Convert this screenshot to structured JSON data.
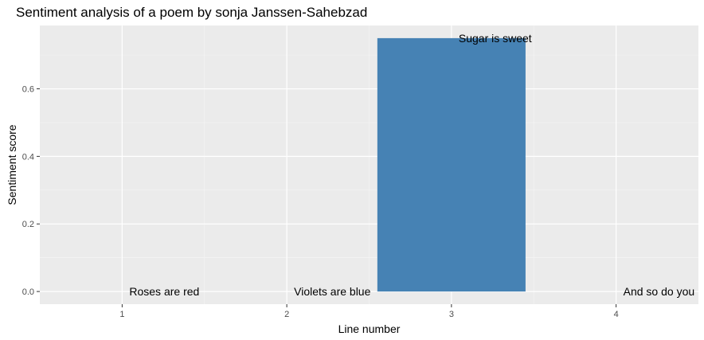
{
  "chart_data": {
    "type": "bar",
    "title": "Sentiment analysis of a poem by sonja Janssen-Sahebzad",
    "xlabel": "Line number",
    "ylabel": "Sentiment score",
    "x": [
      1,
      2,
      3,
      4
    ],
    "values": [
      0.0,
      0.0,
      0.75,
      0.0
    ],
    "labels": [
      "Roses are red",
      "Violets are blue",
      "Sugar is sweet",
      "And so do you"
    ],
    "xticks": [
      "1",
      "2",
      "3",
      "4"
    ],
    "yticks": [
      "0.0",
      "0.2",
      "0.4",
      "0.6"
    ],
    "ytick_values": [
      0.0,
      0.2,
      0.4,
      0.6
    ],
    "xlim": [
      0.5,
      4.5
    ],
    "ylim": [
      -0.0375,
      0.7875
    ],
    "grid": true,
    "legend": "none",
    "bar_color": "#4682B4",
    "panel_color": "#EBEBEB"
  }
}
